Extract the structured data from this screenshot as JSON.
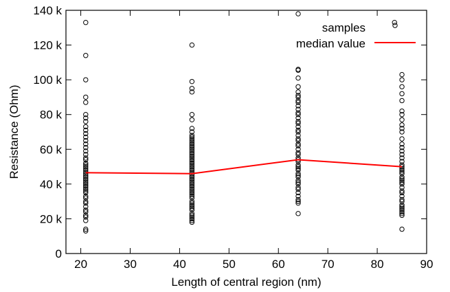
{
  "chart_data": {
    "type": "scatter",
    "title": "",
    "xlabel": "Length of central region (nm)",
    "ylabel": "Resistance (Ohm)",
    "xlim": [
      17,
      90
    ],
    "ylim": [
      0,
      140000
    ],
    "x_ticks": [
      20,
      30,
      40,
      50,
      60,
      70,
      80,
      90
    ],
    "x_tick_labels": [
      "20",
      "30",
      "40",
      "50",
      "60",
      "70",
      "80",
      "90"
    ],
    "y_ticks": [
      0,
      20000,
      40000,
      60000,
      80000,
      100000,
      120000,
      140000
    ],
    "y_tick_labels": [
      "0",
      "20 k",
      "40 k",
      "60 k",
      "80 k",
      "100 k",
      "120 k",
      "140 k"
    ],
    "grid": false,
    "legend": {
      "position": "top-right",
      "entries": [
        "samples",
        "median value"
      ]
    },
    "series": [
      {
        "name": "samples",
        "kind": "scatter",
        "marker": "open-circle",
        "color": "#000000",
        "groups": [
          {
            "x": 21,
            "y": [
              133000,
              114000,
              100000,
              90000,
              87000,
              80000,
              78000,
              76000,
              73000,
              71000,
              69000,
              67000,
              65000,
              63000,
              61000,
              59000,
              57000,
              55000,
              54000,
              52000,
              51000,
              50000,
              49000,
              48000,
              47000,
              46000,
              45000,
              44000,
              43000,
              42000,
              41000,
              40000,
              39000,
              38000,
              37000,
              36000,
              35000,
              33000,
              32000,
              30000,
              29000,
              27000,
              25000,
              24000,
              22000,
              21000,
              19000,
              14000,
              13000
            ]
          },
          {
            "x": 42.5,
            "y": [
              120000,
              99000,
              95000,
              93000,
              80000,
              77000,
              72000,
              70000,
              68000,
              67000,
              66000,
              65000,
              64000,
              63000,
              62000,
              61000,
              60000,
              59000,
              58000,
              57000,
              56000,
              55000,
              54000,
              53000,
              52000,
              51000,
              50000,
              49000,
              48000,
              47000,
              46000,
              45000,
              44000,
              43000,
              42000,
              41000,
              40000,
              39000,
              38000,
              37000,
              36000,
              35000,
              34000,
              33000,
              32000,
              30000,
              29000,
              28000,
              27000,
              26000,
              25000,
              23000,
              22000,
              21000,
              20000,
              19000,
              18000
            ]
          },
          {
            "x": 64,
            "y": [
              138000,
              106000,
              105500,
              101000,
              96000,
              93000,
              91000,
              90000,
              88000,
              87000,
              85000,
              83000,
              81000,
              80000,
              78000,
              76000,
              75000,
              73000,
              71000,
              70000,
              68000,
              66000,
              65000,
              63000,
              62000,
              60000,
              58000,
              57000,
              55000,
              54000,
              53000,
              51000,
              50000,
              49000,
              48000,
              46000,
              45000,
              44000,
              42000,
              41000,
              40000,
              38000,
              37000,
              35000,
              33000,
              31000,
              30000,
              29000,
              23000
            ]
          },
          {
            "x": 83.5,
            "y": [
              133000
            ]
          },
          {
            "x": 85,
            "y": [
              103000,
              100000,
              96000,
              92000,
              88000,
              82000,
              80000,
              77000,
              74000,
              72000,
              70000,
              66000,
              63000,
              61000,
              59000,
              57000,
              55000,
              53000,
              51000,
              50000,
              49000,
              48000,
              47000,
              46000,
              44000,
              43000,
              42000,
              41000,
              40000,
              38000,
              36000,
              35000,
              33000,
              31000,
              30000,
              28000,
              27000,
              26000,
              25000,
              24000,
              23000,
              22000,
              14000
            ]
          }
        ]
      },
      {
        "name": "median value",
        "kind": "line",
        "color": "#ff0000",
        "x": [
          21,
          42.5,
          64,
          85
        ],
        "y": [
          46500,
          46000,
          54000,
          50000
        ]
      }
    ]
  }
}
